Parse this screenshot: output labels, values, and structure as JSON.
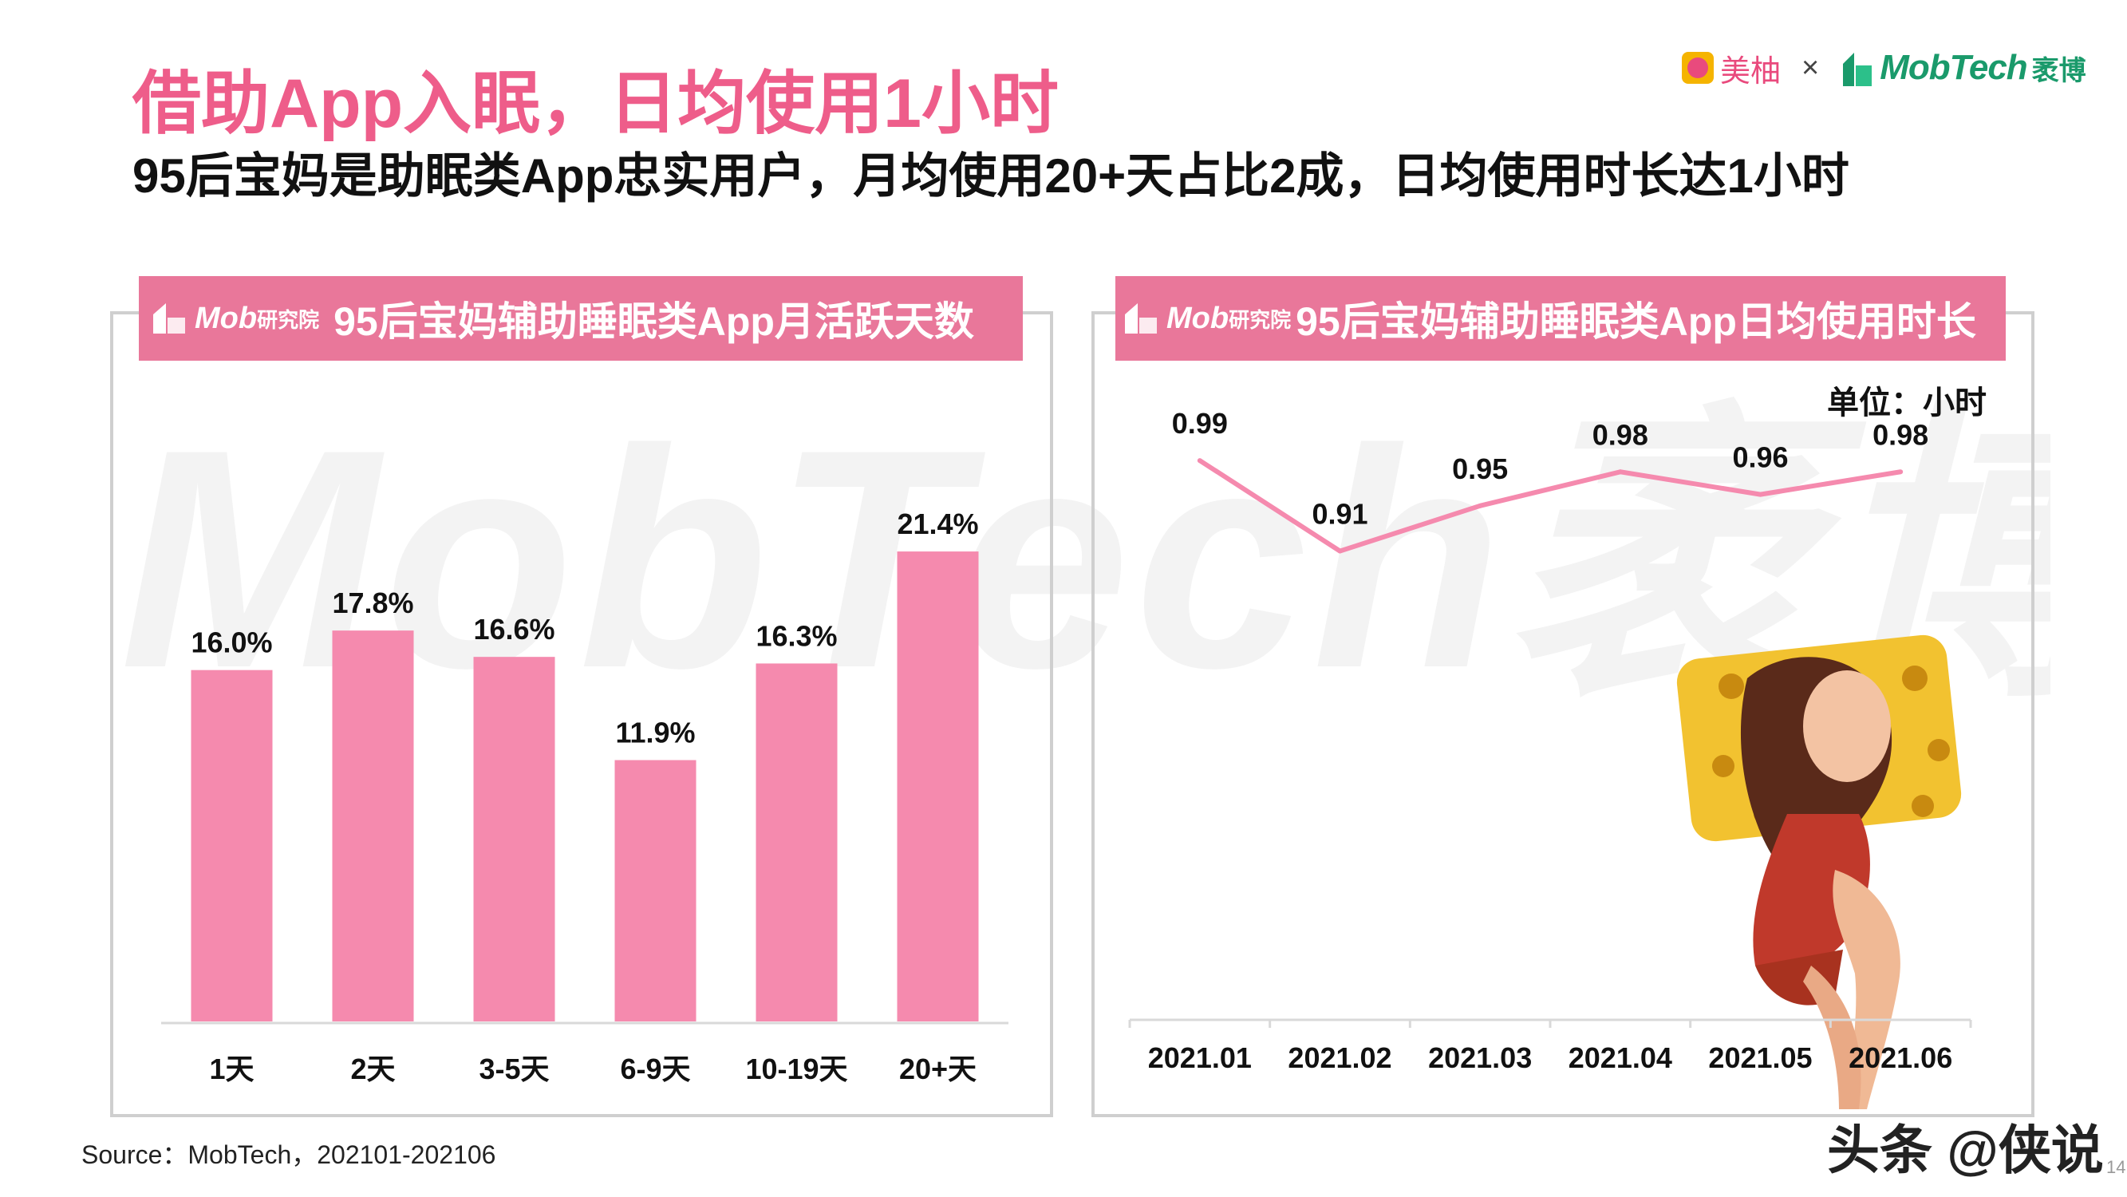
{
  "title": "借助App入眠，日均使用1小时",
  "subtitle": "95后宝妈是助眠类App忠实用户，月均使用20+天占比2成，日均使用时长达1小时",
  "logo": {
    "brand1": "美柚",
    "separator": "×",
    "brand2": "MobTech",
    "brand2_cn": "袤博"
  },
  "watermark_text": "MobTech袤博",
  "left_panel": {
    "header_brand": "Mob",
    "header_brand_cn": "研究院",
    "header_title": "95后宝妈辅助睡眠类App月活跃天数"
  },
  "right_panel": {
    "header_brand": "Mob",
    "header_brand_cn": "研究院",
    "header_title": "95后宝妈辅助睡眠类App日均使用时长",
    "unit": "单位：小时"
  },
  "chart_data": [
    {
      "type": "bar",
      "title": "95后宝妈辅助睡眠类App月活跃天数",
      "categories": [
        "1天",
        "2天",
        "3-5天",
        "6-9天",
        "10-19天",
        "20+天"
      ],
      "values": [
        16.0,
        17.8,
        16.6,
        11.9,
        16.3,
        21.4
      ],
      "data_labels": [
        "16.0%",
        "17.8%",
        "16.6%",
        "11.9%",
        "16.3%",
        "21.4%"
      ],
      "ylim": [
        0,
        25
      ],
      "grid": false,
      "color": "#f58aae"
    },
    {
      "type": "line",
      "title": "95后宝妈辅助睡眠类App日均使用时长",
      "x": [
        "2021.01",
        "2021.02",
        "2021.03",
        "2021.04",
        "2021.05",
        "2021.06"
      ],
      "values": [
        0.99,
        0.91,
        0.95,
        0.98,
        0.96,
        0.98
      ],
      "data_labels": [
        "0.99",
        "0.91",
        "0.95",
        "0.98",
        "0.96",
        "0.98"
      ],
      "unit": "单位：小时",
      "ylim": [
        0.5,
        1.05
      ],
      "grid": false,
      "color": "#f58aae"
    }
  ],
  "source": "Source：MobTech，202101-202106",
  "footer_watermark": "头条 @侠说",
  "page_number": "14",
  "colors": {
    "accent": "#ee5d8a",
    "header_bg": "#e9779a",
    "bar": "#f58aae",
    "brand_green": "#1a9a6b",
    "panel_border": "#cfcfcf"
  }
}
